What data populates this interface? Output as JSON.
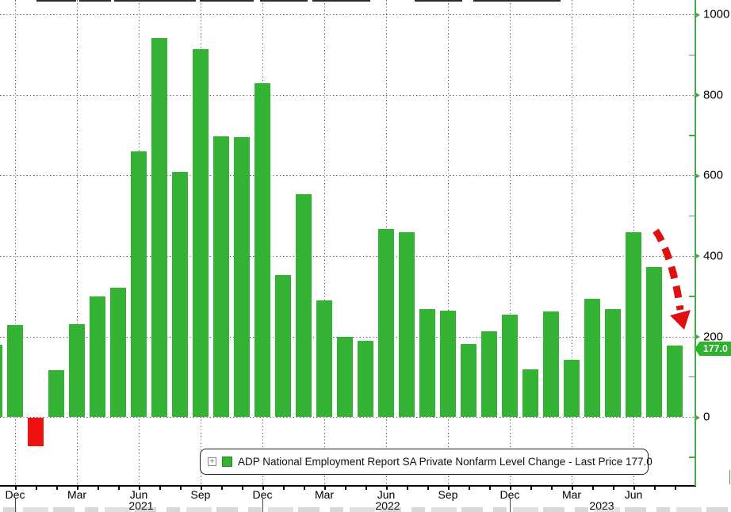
{
  "colors": {
    "positive_bar": "#33B233",
    "negative_bar": "#EE1111",
    "axis_green": "#4CA64C",
    "grid_dot": "#3F3F3F",
    "arrow_red": "#E01010",
    "text": "#111111",
    "badge_bg": "#2DB42D",
    "badge_text": "#FFFFFF"
  },
  "legend": {
    "expand_icon": "+",
    "text": "ADP National Employment Report SA Private Nonfarm Level Change - Last Price 177.0"
  },
  "badge": {
    "text": "177.0"
  },
  "y_axis": {
    "major_ticks": [
      0,
      200,
      400,
      600,
      800,
      1000
    ],
    "minor_ticks": [
      -100,
      100,
      300,
      500,
      700,
      900
    ]
  },
  "x_axis": {
    "quarter_labels": [
      {
        "m": 1,
        "label": "Dec"
      },
      {
        "m": 4,
        "label": "Mar"
      },
      {
        "m": 7,
        "label": "Jun"
      },
      {
        "m": 10,
        "label": "Sep"
      },
      {
        "m": 13,
        "label": "Dec"
      },
      {
        "m": 16,
        "label": "Mar"
      },
      {
        "m": 19,
        "label": "Jun"
      },
      {
        "m": 22,
        "label": "Sep"
      },
      {
        "m": 25,
        "label": "Dec"
      },
      {
        "m": 28,
        "label": "Mar"
      },
      {
        "m": 31,
        "label": "Jun"
      }
    ],
    "year_labels": [
      {
        "label": "2021",
        "x": 178
      },
      {
        "label": "2022",
        "x": 489
      },
      {
        "label": "2023",
        "x": 759
      }
    ],
    "year_divider_month_indices": [
      1,
      13,
      25
    ]
  },
  "chart_data": {
    "type": "bar",
    "series_name": "ADP National Employment Report SA Private Nonfarm Level Change",
    "last_price": 177.0,
    "categories": [
      "Nov 2020",
      "Dec 2020",
      "Jan 2021",
      "Feb 2021",
      "Mar 2021",
      "Apr 2021",
      "May 2021",
      "Jun 2021",
      "Jul 2021",
      "Aug 2021",
      "Sep 2021",
      "Oct 2021",
      "Nov 2021",
      "Dec 2021",
      "Jan 2022",
      "Feb 2022",
      "Mar 2022",
      "Apr 2022",
      "May 2022",
      "Jun 2022",
      "Jul 2022",
      "Aug 2022",
      "Sep 2022",
      "Oct 2022",
      "Nov 2022",
      "Dec 2022",
      "Jan 2023",
      "Feb 2023",
      "Mar 2023",
      "Apr 2023",
      "May 2023",
      "Jun 2023",
      "Jul 2023",
      "Aug 2023"
    ],
    "values": [
      180,
      228,
      -70,
      116,
      230,
      300,
      321,
      660,
      941,
      608,
      915,
      698,
      695,
      829,
      352,
      553,
      289,
      199,
      189,
      467,
      459,
      268,
      264,
      181,
      213,
      254,
      118,
      262,
      142,
      293,
      268,
      459,
      372,
      177
    ],
    "ylabel": "",
    "xlabel": "",
    "ylim": [
      -163,
      1037
    ],
    "yticks": [
      0,
      200,
      400,
      600,
      800,
      1000
    ],
    "grid": "dotted",
    "legend_position": "bottom",
    "annotation": "red dashed arrow pointing down toward last bar"
  }
}
